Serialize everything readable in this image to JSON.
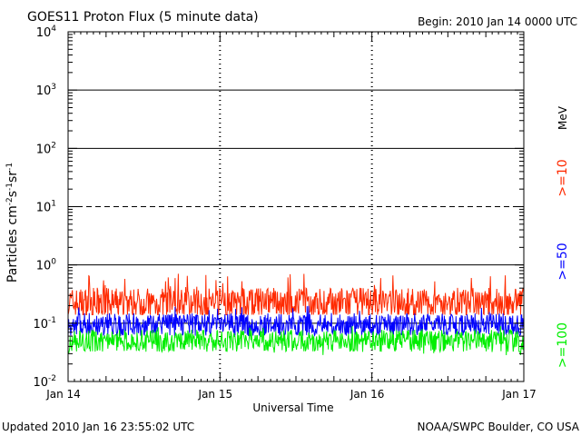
{
  "header": {
    "title": "GOES11 Proton Flux (5 minute data)",
    "begin": "Begin: 2010 Jan 14 0000 UTC"
  },
  "footer": {
    "updated": "Updated 2010 Jan 16 23:55:02 UTC",
    "credit": "NOAA/SWPC Boulder, CO USA"
  },
  "chart_data": {
    "type": "line",
    "title": "GOES11 Proton Flux (5 minute data)",
    "xlabel": "Universal Time",
    "ylabel": {
      "text": "Particles cm",
      "parts": [
        {
          "text": "Particles cm",
          "sup": false
        },
        {
          "text": "-2",
          "sup": true
        },
        {
          "text": "s",
          "sup": false
        },
        {
          "text": "-1",
          "sup": true
        },
        {
          "text": "sr",
          "sup": false
        },
        {
          "text": "-1",
          "sup": true
        }
      ]
    },
    "y_scale": "log",
    "ylim": [
      0.01,
      10000
    ],
    "xlim": [
      "2010-01-14 00:00",
      "2010-01-17 00:00"
    ],
    "x_ticks": [
      "Jan 14",
      "Jan 15",
      "Jan 16",
      "Jan 17"
    ],
    "y_ticks": [
      {
        "base": "10",
        "exp": "-2",
        "value": 0.01
      },
      {
        "base": "10",
        "exp": "-1",
        "value": 0.1
      },
      {
        "base": "10",
        "exp": "0",
        "value": 1
      },
      {
        "base": "10",
        "exp": "1",
        "value": 10
      },
      {
        "base": "10",
        "exp": "2",
        "value": 100
      },
      {
        "base": "10",
        "exp": "3",
        "value": 1000
      },
      {
        "base": "10",
        "exp": "4",
        "value": 10000
      }
    ],
    "threshold_line": {
      "value": 10,
      "style": "dashed"
    },
    "grid": true,
    "units_label": "MeV",
    "series": [
      {
        "name": ">=10",
        "color": "#ff2a00",
        "typical": 0.22,
        "low": 0.14,
        "high": 0.72
      },
      {
        "name": ">=50",
        "color": "#0000ff",
        "typical": 0.095,
        "low": 0.06,
        "high": 0.2
      },
      {
        "name": ">=100",
        "color": "#00ee00",
        "typical": 0.05,
        "low": 0.028,
        "high": 0.09
      }
    ]
  }
}
